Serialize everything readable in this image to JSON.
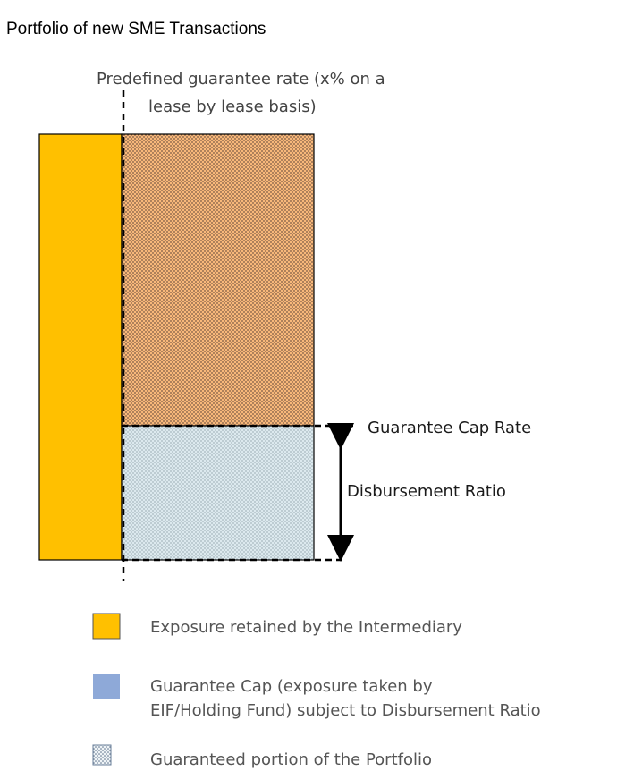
{
  "title": "Portfolio of new SME Transactions",
  "guarantee_rate_label": {
    "line1": "Predefined guarantee rate (x% on a",
    "line2": "lease by lease basis)"
  },
  "annotations": {
    "cap_rate": "Guarantee Cap Rate",
    "disbursement_ratio": "Disbursement Ratio"
  },
  "legend": [
    {
      "icon": "solid-orange-swatch",
      "color": "#FFC000",
      "line1": "Exposure retained by the Intermediary",
      "line2": ""
    },
    {
      "icon": "solid-blue-swatch",
      "color": "#8EA9D8",
      "line1": "Guarantee Cap (exposure taken by",
      "line2": "EIF/Holding Fund) subject to Disbursement Ratio"
    },
    {
      "icon": "dotted-swatch",
      "color": "#FFFFFF",
      "line1": "Guaranteed portion of the Portfolio",
      "line2": ""
    }
  ],
  "colors": {
    "retained": "#FFC000",
    "dotted_upper": "#F8B87A",
    "dotted_lower": "#D6E6EC",
    "dots": "#7A5A45",
    "legend_blue": "#8EA9D8",
    "border": "#000000"
  }
}
